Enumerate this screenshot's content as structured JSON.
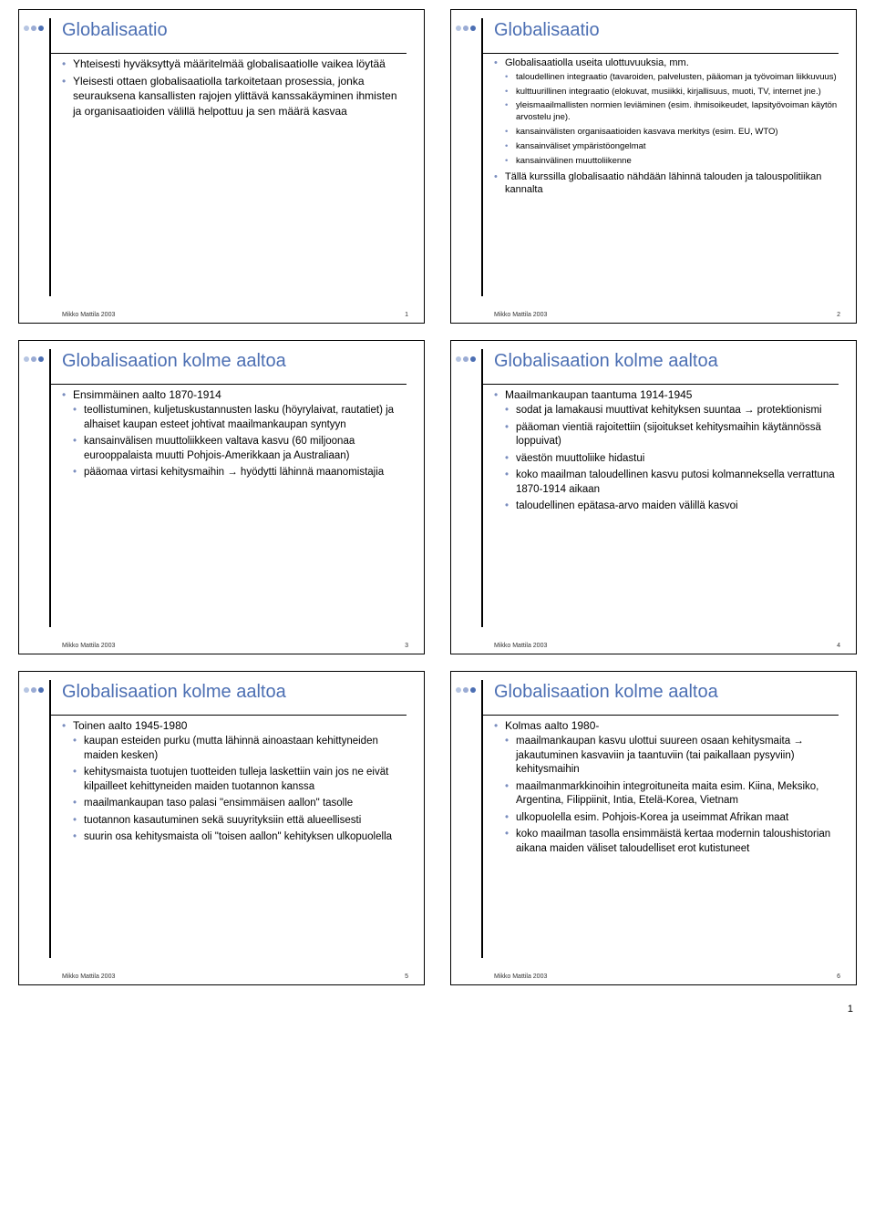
{
  "dot_colors": [
    "#B6C5E2",
    "#9AABD4",
    "#4C6FB3"
  ],
  "title_color": "#4C6FB3",
  "bullet_color": "#7A8DBE",
  "footer_author": "Mikko Mattila 2003",
  "page_number_bottom": "1",
  "slides": [
    {
      "title": "Globalisaatio",
      "num": "1",
      "items": [
        {
          "t": "Yhteisesti hyväksyttyä määritelmää globalisaatiolle vaikea löytää"
        },
        {
          "t": "Yleisesti ottaen globalisaatiolla tarkoitetaan prosessia, jonka seurauksena kansallisten rajojen ylittävä kanssakäyminen ihmisten ja organisaatioiden välillä helpottuu ja sen määrä kasvaa"
        }
      ]
    },
    {
      "title": "Globalisaatio",
      "num": "2",
      "small": true,
      "items": [
        {
          "t": "Globalisaatiolla useita ulottuvuuksia, mm.",
          "sub": [
            {
              "t": "taloudellinen integraatio (tavaroiden, palvelusten, pääoman ja työvoiman liikkuvuus)"
            },
            {
              "t": "kulttuurillinen integraatio (elokuvat, musiikki, kirjallisuus, muoti, TV, internet jne.)"
            },
            {
              "t": "yleismaailmallisten normien leviäminen (esim. ihmisoikeudet, lapsityövoiman käytön arvostelu jne)."
            },
            {
              "t": "kansainvälisten organisaatioiden kasvava merkitys (esim. EU, WTO)"
            },
            {
              "t": "kansainväliset ympäristöongelmat"
            },
            {
              "t": "kansainvälinen muuttoliikenne"
            }
          ]
        },
        {
          "t": "Tällä kurssilla globalisaatio nähdään lähinnä talouden ja talouspolitiikan kannalta"
        }
      ]
    },
    {
      "title": "Globalisaation kolme aaltoa",
      "num": "3",
      "items": [
        {
          "t": "Ensimmäinen aalto 1870-1914",
          "sub": [
            {
              "t": "teollistuminen, kuljetuskustannusten lasku (höyrylaivat, rautatiet) ja alhaiset kaupan esteet johtivat maailmankaupan syntyyn"
            },
            {
              "t": "kansainvälisen muuttoliikkeen valtava kasvu (60 miljoonaa eurooppalaista muutti Pohjois-Amerikkaan ja Australiaan)"
            },
            {
              "t": "pääomaa virtasi kehitysmaihin → hyödytti lähinnä maanomistajia"
            }
          ]
        }
      ]
    },
    {
      "title": "Globalisaation kolme aaltoa",
      "num": "4",
      "items": [
        {
          "t": "Maailmankaupan taantuma 1914-1945",
          "sub": [
            {
              "t": "sodat ja lamakausi muuttivat kehityksen suuntaa → protektionismi"
            },
            {
              "t": "pääoman vientiä rajoitettiin (sijoitukset kehitysmaihin käytännössä loppuivat)"
            },
            {
              "t": "väestön muuttoliike hidastui"
            },
            {
              "t": "koko maailman taloudellinen kasvu putosi kolmanneksella verrattuna 1870-1914 aikaan"
            },
            {
              "t": "taloudellinen epätasa-arvo maiden välillä kasvoi"
            }
          ]
        }
      ]
    },
    {
      "title": "Globalisaation kolme aaltoa",
      "num": "5",
      "items": [
        {
          "t": "Toinen aalto 1945-1980",
          "sub": [
            {
              "t": "kaupan esteiden purku (mutta lähinnä ainoastaan kehittyneiden maiden kesken)"
            },
            {
              "t": "kehitysmaista tuotujen tuotteiden tulleja laskettiin vain jos ne eivät kilpailleet kehittyneiden maiden tuotannon kanssa"
            },
            {
              "t": "maailmankaupan taso palasi \"ensimmäisen aallon\" tasolle"
            },
            {
              "t": "tuotannon kasautuminen sekä suuyrityksiin että alueellisesti"
            },
            {
              "t": "suurin osa kehitysmaista oli \"toisen aallon\" kehityksen ulkopuolella"
            }
          ]
        }
      ]
    },
    {
      "title": "Globalisaation kolme aaltoa",
      "num": "6",
      "items": [
        {
          "t": "Kolmas aalto 1980-",
          "sub": [
            {
              "t": "maailmankaupan kasvu ulottui suureen osaan kehitysmaita → jakautuminen kasvaviin ja taantuviin (tai paikallaan pysyviin) kehitysmaihin"
            },
            {
              "t": "maailmanmarkkinoihin integroituneita maita esim. Kiina, Meksiko, Argentina, Filippiinit, Intia, Etelä-Korea, Vietnam"
            },
            {
              "t": "ulkopuolella esim. Pohjois-Korea ja useimmat Afrikan maat"
            },
            {
              "t": "koko maailman tasolla ensimmäistä kertaa modernin taloushistorian aikana maiden väliset taloudelliset erot kutistuneet"
            }
          ]
        }
      ]
    }
  ]
}
